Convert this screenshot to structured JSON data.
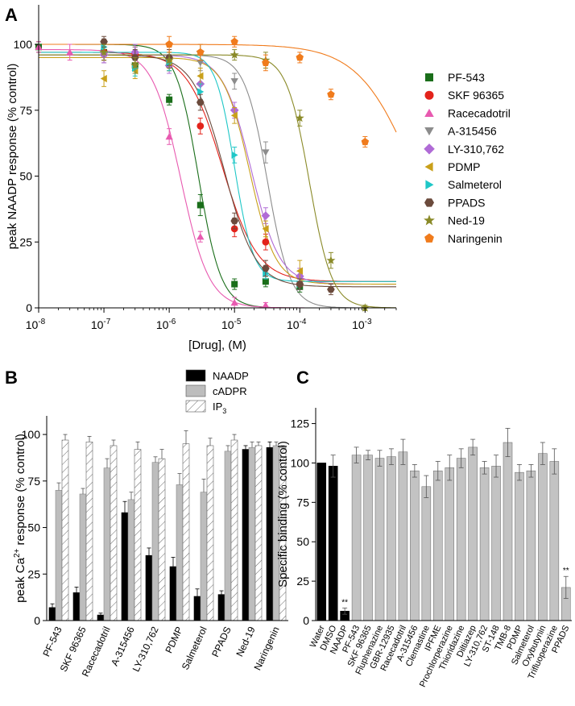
{
  "chart_data": [
    {
      "panel": "A",
      "type": "scatter",
      "xlabel": "[Drug], (M)",
      "ylabel": "peak NAADP response (% control)",
      "xscale": "log",
      "xlim": [
        1e-08,
        0.003
      ],
      "ylim": [
        0,
        115
      ],
      "yticks": [
        0,
        25,
        50,
        75,
        100
      ],
      "xticks": [
        {
          "v": 1e-08,
          "base": "10",
          "exp": "-8"
        },
        {
          "v": 1e-07,
          "base": "10",
          "exp": "-7"
        },
        {
          "v": 1e-06,
          "base": "10",
          "exp": "-6"
        },
        {
          "v": 1e-05,
          "base": "10",
          "exp": "-5"
        },
        {
          "v": 0.0001,
          "base": "10",
          "exp": "-4"
        },
        {
          "v": 0.001,
          "base": "10",
          "exp": "-3"
        }
      ],
      "legend_position": "right",
      "series": [
        {
          "name": "PF-543",
          "color": "#1a6e1a",
          "marker": "square",
          "x": [
            1e-08,
            1e-07,
            3e-07,
            1e-06,
            3e-06,
            1e-05,
            3e-05,
            0.0001
          ],
          "y": [
            99,
            97,
            92,
            79,
            39,
            9,
            10,
            8
          ],
          "err": [
            2,
            3,
            3,
            2,
            4,
            2,
            2,
            2
          ],
          "fit": {
            "top": 100,
            "bottom": 0,
            "ic50": 2.8e-06,
            "hill": 2.5
          }
        },
        {
          "name": "SKF 96365",
          "color": "#e3231b",
          "marker": "circle",
          "x": [
            1e-07,
            3e-07,
            1e-06,
            3e-06,
            1e-05,
            3e-05,
            0.0001
          ],
          "y": [
            97,
            96,
            92,
            69,
            30,
            25,
            9
          ],
          "err": [
            3,
            3,
            2,
            3,
            3,
            3,
            2
          ],
          "fit": {
            "top": 97,
            "bottom": 10,
            "ic50": 6.5e-06,
            "hill": 1.6
          }
        },
        {
          "name": "Racecadotril",
          "color": "#e85ab0",
          "marker": "triangle-up",
          "x": [
            1e-08,
            3e-08,
            1e-07,
            1e-06,
            3e-06,
            1e-05,
            3e-05
          ],
          "y": [
            99,
            97,
            97,
            65,
            27,
            2,
            1
          ],
          "err": [
            2,
            3,
            4,
            3,
            2,
            2,
            1
          ],
          "fit": {
            "top": 98,
            "bottom": 0,
            "ic50": 1.5e-06,
            "hill": 2.0
          }
        },
        {
          "name": "A-315456",
          "color": "#8c8c8c",
          "marker": "triangle-down",
          "x": [
            1e-07,
            3e-07,
            1e-06,
            3e-06,
            1e-05,
            3e-05,
            0.0001
          ],
          "y": [
            96,
            96,
            95,
            93,
            86,
            59,
            9
          ],
          "err": [
            3,
            3,
            3,
            3,
            3,
            4,
            2
          ],
          "fit": {
            "top": 96,
            "bottom": 0,
            "ic50": 3.2e-05,
            "hill": 2.5
          }
        },
        {
          "name": "LY-310,762",
          "color": "#b06bd6",
          "marker": "diamond",
          "x": [
            1e-07,
            3e-07,
            1e-06,
            3e-06,
            1e-05,
            3e-05,
            0.0001
          ],
          "y": [
            96,
            97,
            92,
            85,
            75,
            35,
            12
          ],
          "err": [
            3,
            3,
            3,
            3,
            3,
            3,
            3
          ],
          "fit": {
            "top": 96,
            "bottom": 9,
            "ic50": 1.8e-05,
            "hill": 2.0
          }
        },
        {
          "name": "PDMP",
          "color": "#c9a01a",
          "marker": "triangle-left",
          "x": [
            1e-07,
            3e-07,
            1e-06,
            3e-06,
            1e-05,
            3e-05,
            0.0001
          ],
          "y": [
            87,
            90,
            93,
            88,
            73,
            30,
            14
          ],
          "err": [
            3,
            3,
            3,
            3,
            3,
            3,
            4
          ],
          "fit": {
            "top": 95,
            "bottom": 9,
            "ic50": 1.7e-05,
            "hill": 2.2
          }
        },
        {
          "name": "Salmeterol",
          "color": "#1ec7c7",
          "marker": "triangle-right",
          "x": [
            1e-07,
            3e-07,
            1e-06,
            3e-06,
            1e-05,
            3e-05,
            0.0001
          ],
          "y": [
            99,
            91,
            93,
            82,
            58,
            13,
            9
          ],
          "err": [
            2,
            3,
            3,
            3,
            3,
            2,
            2
          ],
          "fit": {
            "top": 97,
            "bottom": 10,
            "ic50": 1e-05,
            "hill": 3.0
          }
        },
        {
          "name": "PPADS",
          "color": "#6b4a3c",
          "marker": "hexagon",
          "x": [
            1e-07,
            3e-07,
            1e-06,
            3e-06,
            1e-05,
            3e-05,
            0.0001,
            0.0003
          ],
          "y": [
            101,
            95,
            95,
            78,
            33,
            15,
            9,
            7
          ],
          "err": [
            2,
            3,
            3,
            3,
            3,
            3,
            2,
            2
          ],
          "fit": {
            "top": 96,
            "bottom": 8,
            "ic50": 7e-06,
            "hill": 1.8
          }
        },
        {
          "name": "Ned-19",
          "color": "#8a8a28",
          "marker": "star",
          "x": [
            1e-07,
            3e-07,
            1e-06,
            3e-06,
            1e-05,
            3e-05,
            0.0001,
            0.0003,
            0.001
          ],
          "y": [
            97,
            92,
            94,
            97,
            96,
            94,
            72,
            18,
            0
          ],
          "err": [
            3,
            3,
            3,
            3,
            2,
            3,
            3,
            3,
            1
          ],
          "fit": {
            "top": 96,
            "bottom": 0,
            "ic50": 0.00014,
            "hill": 2.5
          }
        },
        {
          "name": "Naringenin",
          "color": "#f07b1c",
          "marker": "pentagon",
          "x": [
            1e-06,
            3e-06,
            1e-05,
            3e-05,
            0.0001,
            0.0003,
            0.001
          ],
          "y": [
            100,
            97,
            101,
            93,
            95,
            81,
            63
          ],
          "err": [
            3,
            3,
            2,
            3,
            2,
            2,
            2
          ],
          "fit": {
            "top": 100,
            "bottom": 0,
            "ic50": 0.006,
            "hill": 1.0
          }
        }
      ]
    },
    {
      "panel": "B",
      "type": "bar",
      "ylabel_main": "peak Ca",
      "ylabel_sup": "2+",
      "ylabel_rest": " response (% control)",
      "ylim": [
        0,
        110
      ],
      "yticks": [
        0,
        25,
        50,
        75,
        100
      ],
      "categories": [
        "PF-543",
        "SKF 96365",
        "Racecadotril",
        "A-315456",
        "LY-310,762",
        "PDMP",
        "Salmeterol",
        "PPADS",
        "Ned-19",
        "Naringenin"
      ],
      "legend_position": "top-right",
      "series": [
        {
          "name": "NAADP",
          "label_main": "NAADP",
          "label_sub": "",
          "fill": "#000000",
          "values": [
            7,
            15,
            3,
            58,
            35,
            29,
            13,
            14,
            92,
            93
          ],
          "err": [
            2,
            3,
            1,
            6,
            4,
            5,
            4,
            2,
            2,
            3
          ]
        },
        {
          "name": "cADPR",
          "label_main": "cADPR",
          "label_sub": "",
          "fill": "#bdbdbd",
          "values": [
            70,
            68,
            82,
            65,
            85,
            73,
            69,
            91,
            93,
            94
          ],
          "err": [
            4,
            3,
            5,
            4,
            3,
            6,
            7,
            3,
            3,
            2
          ]
        },
        {
          "name": "IP3",
          "label_main": "IP",
          "label_sub": "3",
          "fill": "hatch",
          "values": [
            97,
            96,
            94,
            92,
            87,
            95,
            94,
            97,
            94,
            93
          ],
          "err": [
            3,
            3,
            3,
            4,
            5,
            7,
            4,
            3,
            2,
            1
          ]
        }
      ]
    },
    {
      "panel": "C",
      "type": "bar",
      "ylabel": "Specific binding (% control)",
      "ylim": [
        0,
        135
      ],
      "yticks": [
        0,
        25,
        50,
        75,
        100,
        125
      ],
      "categories": [
        "Water",
        "DMSO",
        "NAADP",
        "PF-543",
        "SKF 96365",
        "Fluphenazine",
        "GBR-12935",
        "Racecadotril",
        "A-315456",
        "Clemastine",
        "IPFME",
        "Prochlorperazine",
        "Thioridazine",
        "Diltiazep",
        "LY-310,762",
        "ST-148",
        "TMB-8",
        "PDMP",
        "Salmeterol",
        "Oxybutynin",
        "Trifluoperazine",
        "PPADS"
      ],
      "values": [
        100,
        98,
        6,
        105,
        105,
        103,
        104,
        107,
        95,
        85,
        95,
        97,
        103,
        110,
        97,
        98,
        113,
        94,
        95,
        106,
        101,
        21
      ],
      "err": [
        0,
        7,
        2,
        5,
        3,
        5,
        5,
        8,
        4,
        7,
        6,
        8,
        6,
        5,
        4,
        7,
        9,
        5,
        4,
        7,
        8,
        7
      ],
      "colors": [
        "#000000",
        "#000000",
        "#000000",
        "#c3c3c3",
        "#c3c3c3",
        "#c3c3c3",
        "#c3c3c3",
        "#c3c3c3",
        "#c3c3c3",
        "#c3c3c3",
        "#c3c3c3",
        "#c3c3c3",
        "#c3c3c3",
        "#c3c3c3",
        "#c3c3c3",
        "#c3c3c3",
        "#c3c3c3",
        "#c3c3c3",
        "#c3c3c3",
        "#c3c3c3",
        "#c3c3c3",
        "#c3c3c3"
      ],
      "annotations": [
        {
          "index": 2,
          "text": "**"
        },
        {
          "index": 21,
          "text": "**"
        }
      ]
    }
  ]
}
